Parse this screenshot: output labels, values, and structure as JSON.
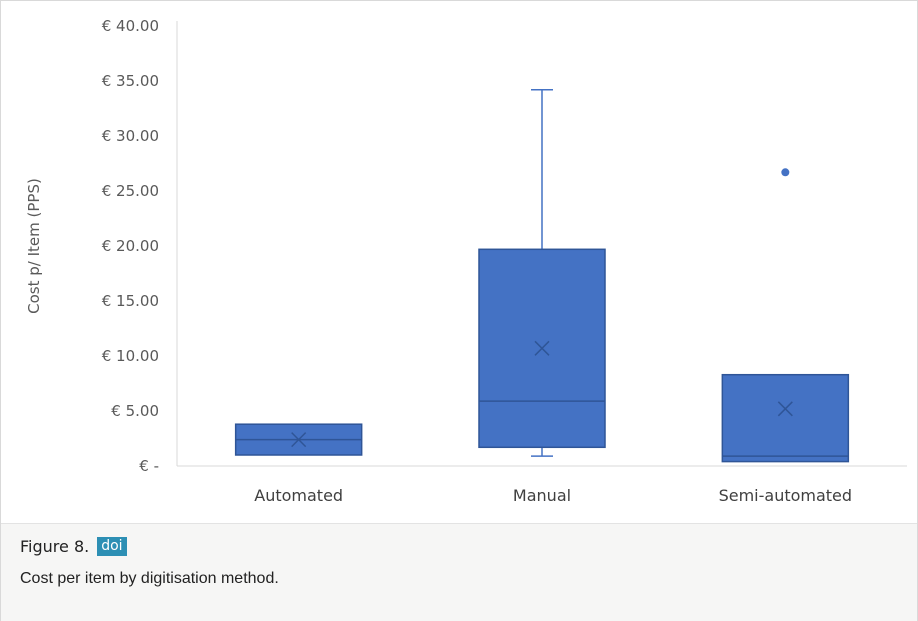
{
  "figure": {
    "label": "Figure 8.",
    "doi_badge": "doi",
    "caption": "Cost per item by digitisation method.",
    "badge_color": "#2d8fb4"
  },
  "chart_data": {
    "type": "box",
    "ylabel": "Cost p/ Item (PPS)",
    "xlabel": "",
    "ylim": [
      0,
      40
    ],
    "y_ticks": [
      {
        "value": 0,
        "label": "€ -"
      },
      {
        "value": 5,
        "label": "€ 5.00"
      },
      {
        "value": 10,
        "label": "€ 10.00"
      },
      {
        "value": 15,
        "label": "€ 15.00"
      },
      {
        "value": 20,
        "label": "€ 20.00"
      },
      {
        "value": 25,
        "label": "€ 25.00"
      },
      {
        "value": 30,
        "label": "€ 30.00"
      },
      {
        "value": 35,
        "label": "€ 35.00"
      },
      {
        "value": 40,
        "label": "€ 40.00"
      }
    ],
    "grid": false,
    "box_color": "#4472c4",
    "box_edge_color": "#2f5597",
    "categories": [
      "Automated",
      "Manual",
      "Semi-automated"
    ],
    "boxes": [
      {
        "category": "Automated",
        "whisker_low": 1.0,
        "q1": 1.0,
        "median": 2.4,
        "q3": 3.8,
        "whisker_high": 3.8,
        "mean": 2.4,
        "outliers": []
      },
      {
        "category": "Manual",
        "whisker_low": 0.9,
        "q1": 1.7,
        "median": 5.9,
        "q3": 19.7,
        "whisker_high": 34.2,
        "mean": 10.7,
        "outliers": []
      },
      {
        "category": "Semi-automated",
        "whisker_low": 0.4,
        "q1": 0.4,
        "median": 0.9,
        "q3": 8.3,
        "whisker_high": 8.3,
        "mean": 5.2,
        "outliers": [
          26.7
        ]
      }
    ]
  }
}
